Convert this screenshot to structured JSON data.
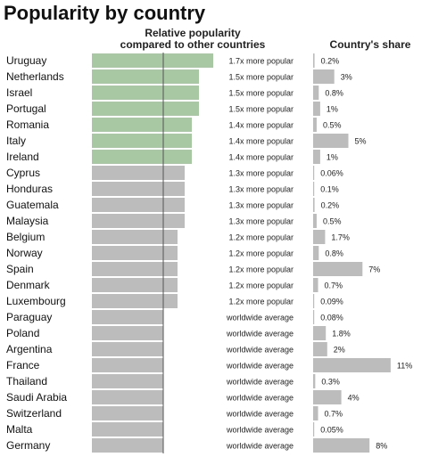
{
  "chart_data": {
    "type": "bar",
    "title": "Popularity by country",
    "panels": [
      {
        "name": "Relative popularity compared to other countries",
        "header_lines": [
          "Relative popularity",
          "compared to other countries"
        ]
      },
      {
        "name": "Country's share",
        "header_lines": [
          "Country's share"
        ]
      }
    ],
    "colors": {
      "highlight": "#a8c8a4",
      "normal": "#bcbcbc",
      "baseline": "#555555"
    },
    "categories": [
      "Uruguay",
      "Netherlands",
      "Israel",
      "Portugal",
      "Romania",
      "Italy",
      "Ireland",
      "Cyprus",
      "Honduras",
      "Guatemala",
      "Malaysia",
      "Belgium",
      "Norway",
      "Spain",
      "Denmark",
      "Luxembourg",
      "Paraguay",
      "Poland",
      "Argentina",
      "France",
      "Thailand",
      "Saudi Arabia",
      "Switzerland",
      "Malta",
      "Germany"
    ],
    "series": [
      {
        "name": "Relative popularity compared to other countries",
        "values": [
          1.7,
          1.5,
          1.5,
          1.5,
          1.4,
          1.4,
          1.4,
          1.3,
          1.3,
          1.3,
          1.3,
          1.2,
          1.2,
          1.2,
          1.2,
          1.2,
          1.0,
          1.0,
          1.0,
          1.0,
          1.0,
          1.0,
          1.0,
          1.0,
          1.0
        ],
        "labels": [
          "1.7x more popular",
          "1.5x more popular",
          "1.5x more popular",
          "1.5x more popular",
          "1.4x more popular",
          "1.4x more popular",
          "1.4x more popular",
          "1.3x more popular",
          "1.3x more popular",
          "1.3x more popular",
          "1.3x more popular",
          "1.2x more popular",
          "1.2x more popular",
          "1.2x more popular",
          "1.2x more popular",
          "1.2x more popular",
          "worldwide average",
          "worldwide average",
          "worldwide average",
          "worldwide average",
          "worldwide average",
          "worldwide average",
          "worldwide average",
          "worldwide average",
          "worldwide average"
        ],
        "highlighted": [
          true,
          true,
          true,
          true,
          true,
          true,
          true,
          false,
          false,
          false,
          false,
          false,
          false,
          false,
          false,
          false,
          false,
          false,
          false,
          false,
          false,
          false,
          false,
          false,
          false
        ],
        "baseline": 1.0
      },
      {
        "name": "Country's share",
        "values": [
          0.2,
          3,
          0.8,
          1,
          0.5,
          5,
          1,
          0.06,
          0.1,
          0.2,
          0.5,
          1.7,
          0.8,
          7,
          0.7,
          0.09,
          0.08,
          1.8,
          2,
          11,
          0.3,
          4,
          0.7,
          0.05,
          8
        ],
        "labels": [
          "0.2%",
          "3%",
          "0.8%",
          "1%",
          "0.5%",
          "5%",
          "1%",
          "0.06%",
          "0.1%",
          "0.2%",
          "0.5%",
          "1.7%",
          "0.8%",
          "7%",
          "0.7%",
          "0.09%",
          "0.08%",
          "1.8%",
          "2%",
          "11%",
          "0.3%",
          "4%",
          "0.7%",
          "0.05%",
          "8%"
        ]
      }
    ]
  }
}
